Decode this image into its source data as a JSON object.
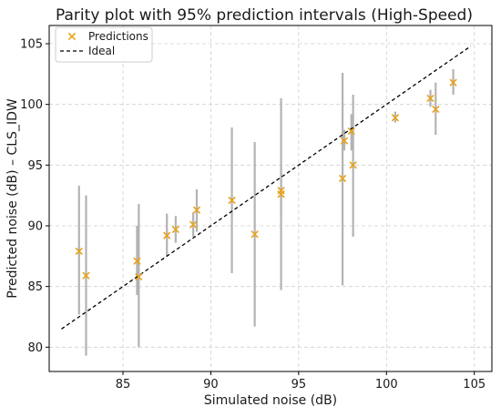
{
  "chart_data": {
    "type": "scatter",
    "title": "Parity plot with 95% prediction intervals (High-Speed)",
    "xlabel": "Simulated noise (dB)",
    "ylabel": "Predicted noise (dB) – CLS_IDW",
    "xlim": [
      80.8,
      106.0
    ],
    "ylim": [
      78.0,
      106.5
    ],
    "xticks": [
      85,
      90,
      95,
      100,
      105
    ],
    "yticks": [
      80,
      85,
      90,
      95,
      100,
      105
    ],
    "grid": true,
    "legend_position": "top-left",
    "colors": {
      "points": "#E8A21A",
      "interval": "#b3b3b3",
      "ideal": "#000000"
    },
    "series": [
      {
        "name": "Predictions",
        "marker": "x",
        "points": [
          {
            "x": 82.5,
            "y": 87.9,
            "lo": 82.7,
            "hi": 93.3
          },
          {
            "x": 82.9,
            "y": 85.9,
            "lo": 79.3,
            "hi": 92.5
          },
          {
            "x": 85.8,
            "y": 87.1,
            "lo": 84.3,
            "hi": 90.0
          },
          {
            "x": 85.9,
            "y": 85.8,
            "lo": 80.0,
            "hi": 91.8
          },
          {
            "x": 87.5,
            "y": 89.2,
            "lo": 87.5,
            "hi": 91.0
          },
          {
            "x": 88.0,
            "y": 89.7,
            "lo": 88.6,
            "hi": 90.8
          },
          {
            "x": 89.0,
            "y": 90.1,
            "lo": 89.1,
            "hi": 91.1
          },
          {
            "x": 89.2,
            "y": 91.3,
            "lo": 89.5,
            "hi": 93.0
          },
          {
            "x": 91.2,
            "y": 92.1,
            "lo": 86.1,
            "hi": 98.1
          },
          {
            "x": 92.5,
            "y": 89.3,
            "lo": 81.7,
            "hi": 96.9
          },
          {
            "x": 94.0,
            "y": 92.9,
            "lo": 90.9,
            "hi": 95.0
          },
          {
            "x": 94.0,
            "y": 92.6,
            "lo": 84.7,
            "hi": 100.5
          },
          {
            "x": 97.5,
            "y": 93.9,
            "lo": 85.1,
            "hi": 102.6
          },
          {
            "x": 97.6,
            "y": 97.0,
            "lo": 96.2,
            "hi": 97.9
          },
          {
            "x": 98.0,
            "y": 97.8,
            "lo": 96.2,
            "hi": 99.2
          },
          {
            "x": 98.1,
            "y": 95.0,
            "lo": 89.1,
            "hi": 100.8
          },
          {
            "x": 100.5,
            "y": 98.9,
            "lo": 98.5,
            "hi": 99.4
          },
          {
            "x": 102.5,
            "y": 100.5,
            "lo": 99.8,
            "hi": 101.2
          },
          {
            "x": 102.8,
            "y": 99.6,
            "lo": 97.5,
            "hi": 101.8
          },
          {
            "x": 103.8,
            "y": 101.8,
            "lo": 100.8,
            "hi": 102.9
          }
        ]
      },
      {
        "name": "Ideal",
        "line_style": "dashed",
        "x": [
          81.5,
          104.8
        ],
        "y": [
          81.5,
          104.8
        ]
      }
    ]
  }
}
